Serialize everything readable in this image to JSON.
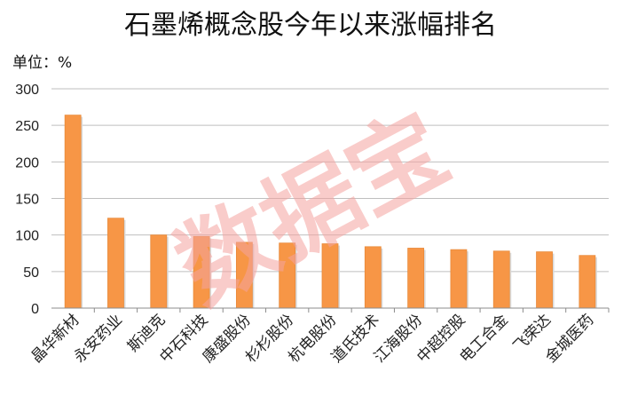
{
  "chart_data": {
    "type": "bar",
    "title": "石墨烯概念股今年以来涨幅排名",
    "unit_label": "单位：%",
    "categories": [
      "晶华新材",
      "永安药业",
      "斯迪克",
      "中石科技",
      "康盛股份",
      "杉杉股份",
      "杭电股份",
      "道氏技术",
      "江海股份",
      "中超控股",
      "电工合金",
      "飞荣达",
      "金城医药"
    ],
    "values": [
      264,
      123,
      100,
      98,
      90,
      89,
      88,
      84,
      82,
      80,
      78,
      77,
      72
    ],
    "ylim": [
      0,
      300
    ],
    "yticks": [
      "0",
      "50",
      "100",
      "150",
      "200",
      "250",
      "300"
    ],
    "grid": true,
    "bar_color": "#f79646",
    "watermark": "数据宝"
  }
}
